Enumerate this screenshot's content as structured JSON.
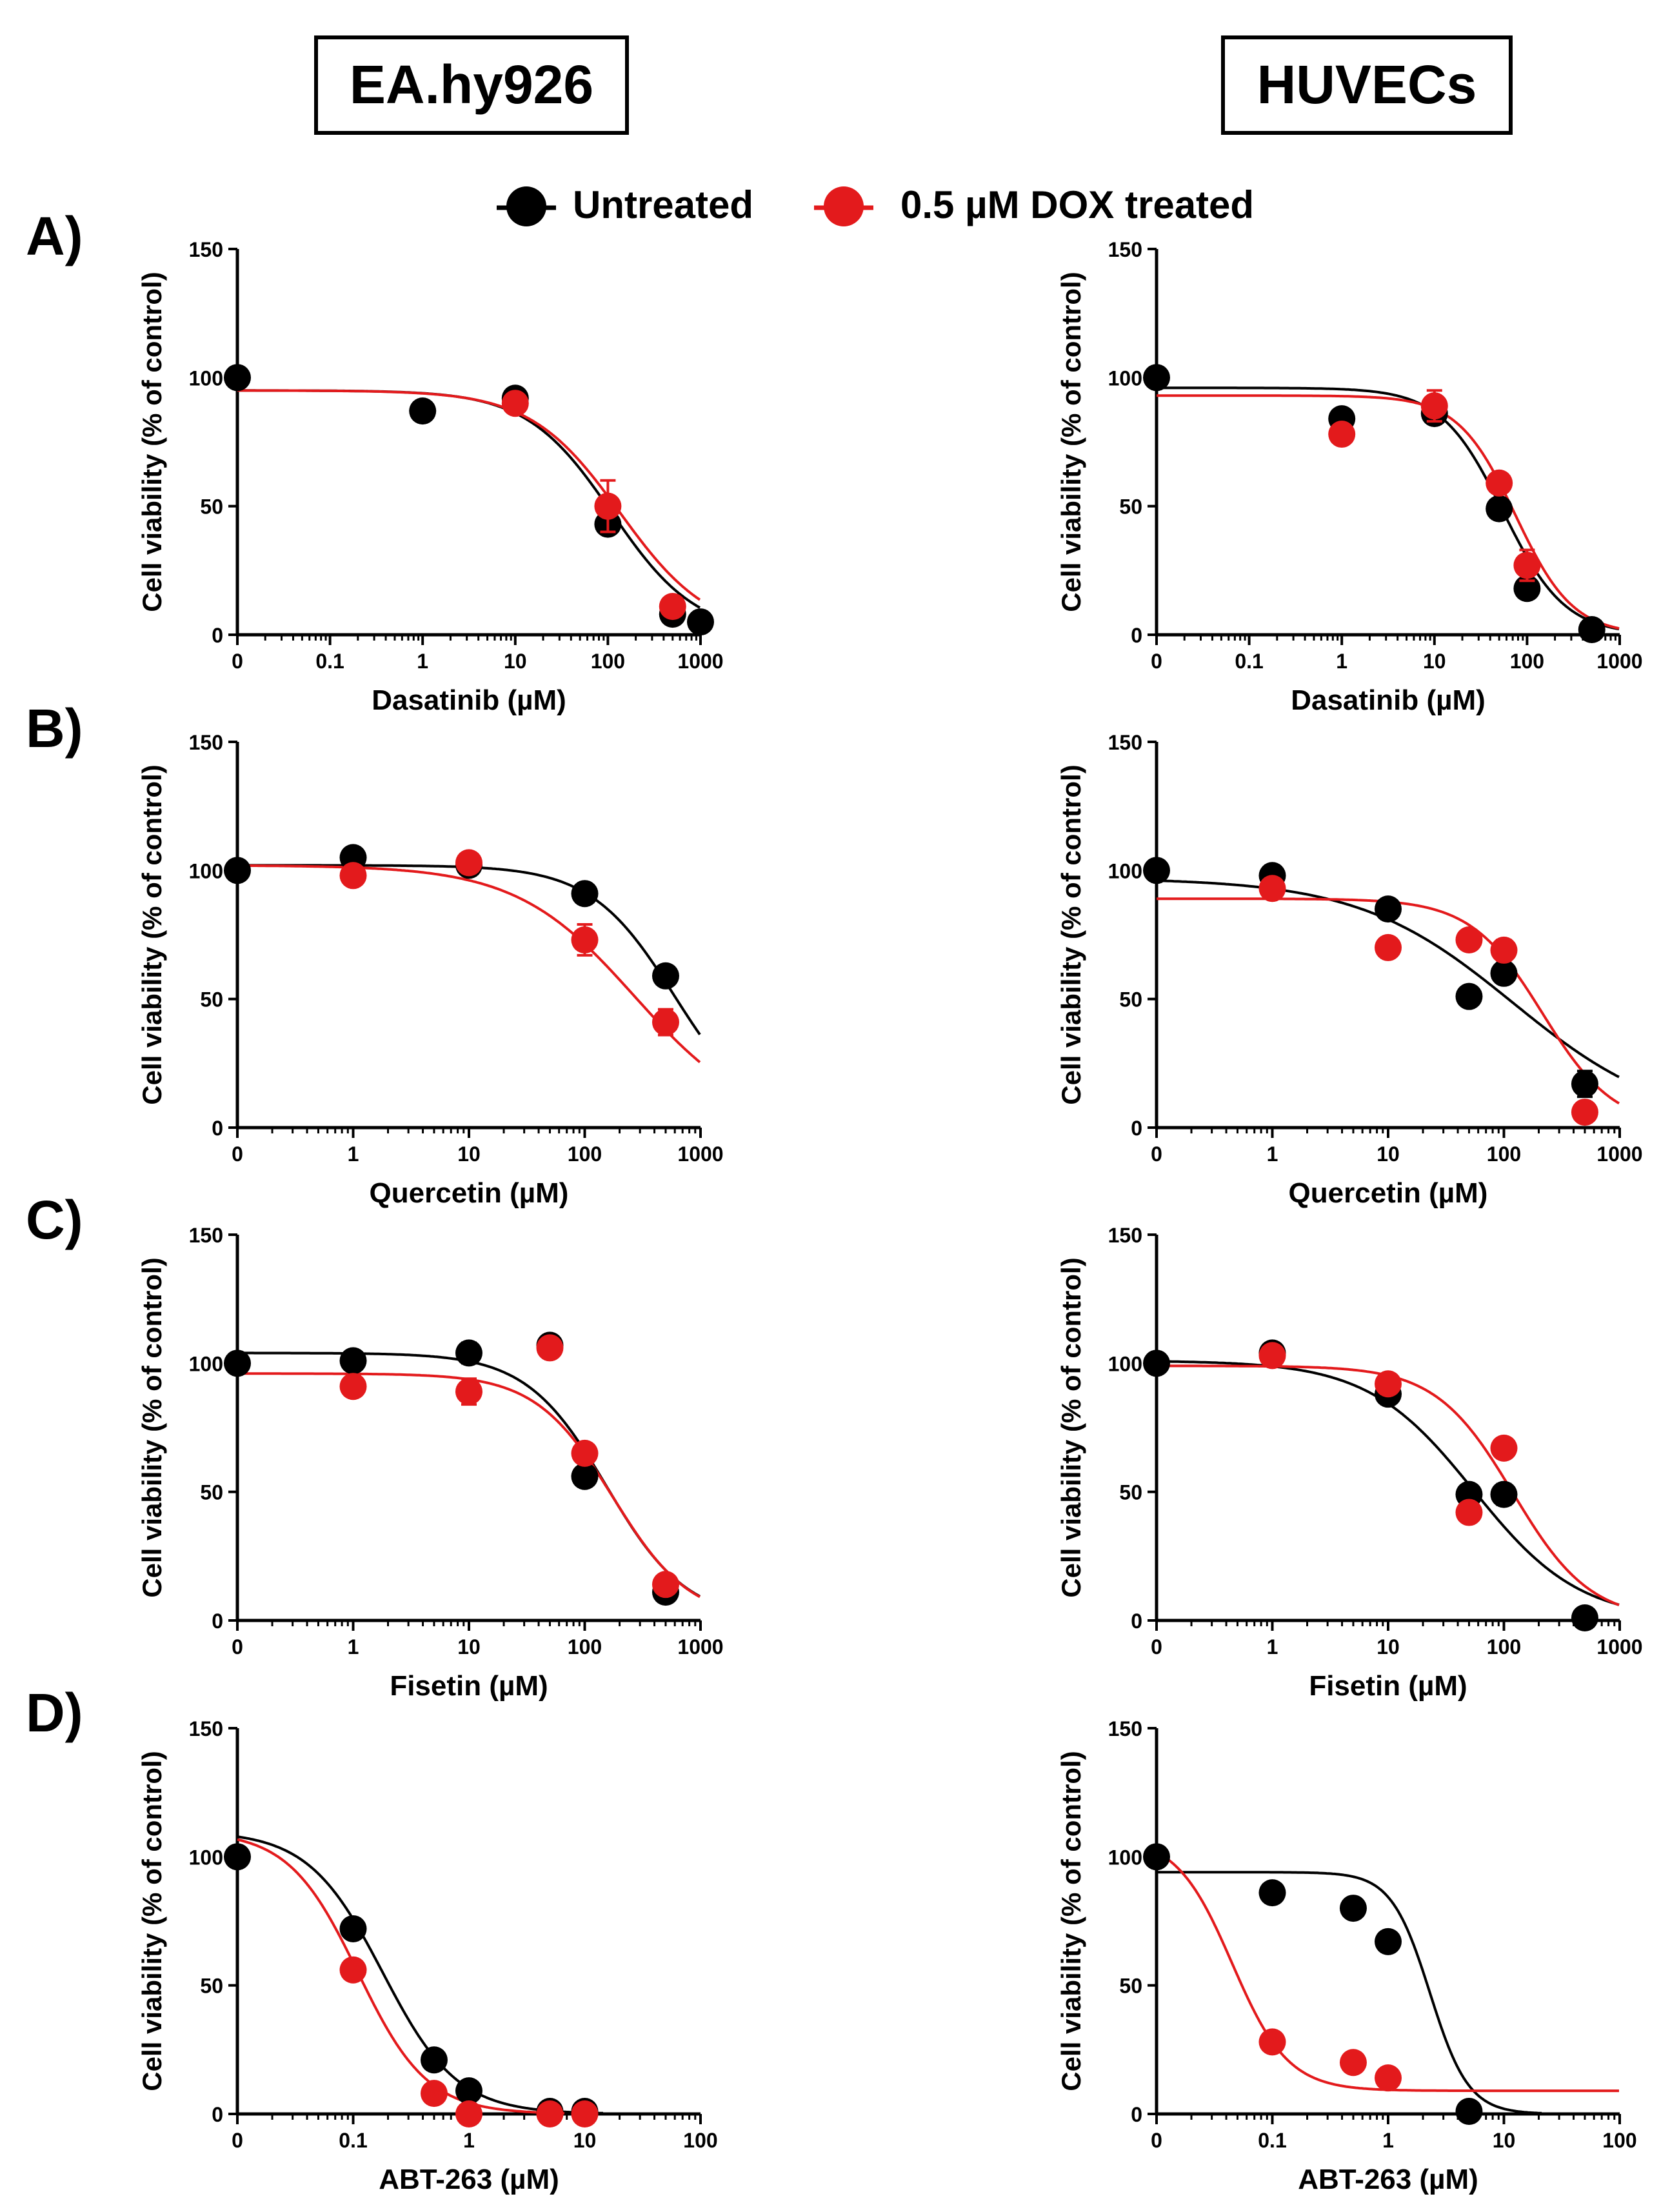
{
  "colors": {
    "untreated": "#000000",
    "treated": "#e31a1c",
    "axis": "#000000"
  },
  "headers": {
    "left": "EA.hy926",
    "right": "HUVECs"
  },
  "legend": {
    "untreated": "Untreated",
    "treated": "0.5 µM DOX treated"
  },
  "row_labels": [
    "A)",
    "B)",
    "C)",
    "D)"
  ],
  "chart_data": [
    {
      "type": "scatter",
      "row": 0,
      "col": 0,
      "title": "",
      "xlabel": "Dasatinib (µM)",
      "ylabel": "Cell viability (% of control)",
      "x_scale": "log",
      "x_ticks": [
        "0",
        "0.1",
        "1",
        "10",
        "100",
        "1000"
      ],
      "xlim_decades": 5,
      "y_ticks": [
        "0",
        "50",
        "100",
        "150"
      ],
      "ylim": [
        0,
        150
      ],
      "series": [
        {
          "name": "Untreated",
          "points": [
            [
              0,
              100,
              0
            ],
            [
              1,
              87,
              3
            ],
            [
              10,
              92,
              3
            ],
            [
              100,
              43,
              3
            ],
            [
              500,
              8,
              2
            ],
            [
              1000,
              5,
              1
            ]
          ],
          "fit": {
            "top": 95,
            "bottom": 0,
            "ec50": 110,
            "hill": 0.95
          }
        },
        {
          "name": "0.5 µM DOX treated",
          "points": [
            [
              10,
              90,
              2
            ],
            [
              100,
              50,
              10
            ],
            [
              500,
              11,
              2
            ]
          ],
          "fit": {
            "top": 95,
            "bottom": 0,
            "ec50": 135,
            "hill": 0.9
          }
        }
      ]
    },
    {
      "type": "scatter",
      "row": 0,
      "col": 1,
      "title": "",
      "xlabel": "Dasatinib (µM)",
      "ylabel": "Cell viability (% of control)",
      "x_scale": "log",
      "x_ticks": [
        "0",
        "0.1",
        "1",
        "10",
        "100",
        "1000"
      ],
      "xlim_decades": 5,
      "y_ticks": [
        "0",
        "50",
        "100",
        "150"
      ],
      "ylim": [
        0,
        150
      ],
      "series": [
        {
          "name": "Untreated",
          "points": [
            [
              0,
              100,
              0
            ],
            [
              1,
              84,
              2
            ],
            [
              10,
              86,
              3
            ],
            [
              50,
              49,
              2
            ],
            [
              100,
              18,
              3
            ],
            [
              500,
              2,
              1
            ]
          ],
          "fit": {
            "top": 96,
            "bottom": 0,
            "ec50": 55,
            "hill": 1.3
          }
        },
        {
          "name": "0.5 µM DOX treated",
          "points": [
            [
              1,
              78,
              3
            ],
            [
              10,
              89,
              6
            ],
            [
              50,
              59,
              2
            ],
            [
              100,
              27,
              6
            ]
          ],
          "fit": {
            "top": 93,
            "bottom": 0,
            "ec50": 75,
            "hill": 1.4
          }
        }
      ]
    },
    {
      "type": "scatter",
      "row": 1,
      "col": 0,
      "title": "",
      "xlabel": "Quercetin (µM)",
      "ylabel": "Cell viability (% of control)",
      "x_scale": "log",
      "x_ticks": [
        "0",
        "1",
        "10",
        "100",
        "1000"
      ],
      "xlim_decades": 4,
      "y_ticks": [
        "0",
        "50",
        "100",
        "150"
      ],
      "ylim": [
        0,
        150
      ],
      "series": [
        {
          "name": "Untreated",
          "points": [
            [
              0,
              100,
              0
            ],
            [
              1,
              105,
              2
            ],
            [
              10,
              102,
              2
            ],
            [
              100,
              91,
              2
            ],
            [
              500,
              59,
              2
            ]
          ],
          "fit": {
            "top": 102,
            "bottom": 0,
            "ec50": 600,
            "hill": 1.2
          }
        },
        {
          "name": "0.5 µM DOX treated",
          "points": [
            [
              1,
              98,
              2
            ],
            [
              10,
              103,
              2
            ],
            [
              100,
              73,
              6
            ],
            [
              500,
              41,
              5
            ]
          ],
          "fit": {
            "top": 102,
            "bottom": 0,
            "ec50": 270,
            "hill": 0.85
          }
        }
      ]
    },
    {
      "type": "scatter",
      "row": 1,
      "col": 1,
      "title": "",
      "xlabel": "Quercetin (µM)",
      "ylabel": "Cell viability (% of control)",
      "x_scale": "log",
      "x_ticks": [
        "0",
        "1",
        "10",
        "100",
        "1000"
      ],
      "xlim_decades": 4,
      "y_ticks": [
        "0",
        "50",
        "100",
        "150"
      ],
      "ylim": [
        0,
        150
      ],
      "series": [
        {
          "name": "Untreated",
          "points": [
            [
              0,
              100,
              0
            ],
            [
              1,
              98,
              2
            ],
            [
              10,
              85,
              2
            ],
            [
              50,
              51,
              2
            ],
            [
              100,
              60,
              3
            ],
            [
              500,
              17,
              5
            ]
          ],
          "fit": {
            "top": 97,
            "bottom": 0,
            "ec50": 120,
            "hill": 0.65
          }
        },
        {
          "name": "0.5 µM DOX treated",
          "points": [
            [
              1,
              93,
              2
            ],
            [
              10,
              70,
              2
            ],
            [
              50,
              73,
              2
            ],
            [
              100,
              69,
              4
            ],
            [
              500,
              6,
              2
            ]
          ],
          "fit": {
            "top": 89,
            "bottom": 0,
            "ec50": 215,
            "hill": 1.4
          }
        }
      ]
    },
    {
      "type": "scatter",
      "row": 2,
      "col": 0,
      "title": "",
      "xlabel": "Fisetin (µM)",
      "ylabel": "Cell viability (% of control)",
      "x_scale": "log",
      "x_ticks": [
        "0",
        "1",
        "10",
        "100",
        "1000"
      ],
      "xlim_decades": 4,
      "y_ticks": [
        "0",
        "50",
        "100",
        "150"
      ],
      "ylim": [
        0,
        150
      ],
      "series": [
        {
          "name": "Untreated",
          "points": [
            [
              0,
              100,
              0
            ],
            [
              1,
              101,
              2
            ],
            [
              10,
              104,
              4
            ],
            [
              50,
              107,
              2
            ],
            [
              100,
              56,
              2
            ],
            [
              500,
              11,
              2
            ]
          ],
          "fit": {
            "top": 104,
            "bottom": 0,
            "ec50": 155,
            "hill": 1.25
          }
        },
        {
          "name": "0.5 µM DOX treated",
          "points": [
            [
              1,
              91,
              3
            ],
            [
              10,
              89,
              5
            ],
            [
              50,
              106,
              2
            ],
            [
              100,
              65,
              3
            ],
            [
              500,
              14,
              2
            ]
          ],
          "fit": {
            "top": 96,
            "bottom": 0,
            "ec50": 175,
            "hill": 1.3
          }
        }
      ]
    },
    {
      "type": "scatter",
      "row": 2,
      "col": 1,
      "title": "",
      "xlabel": "Fisetin (µM)",
      "ylabel": "Cell viability (% of control)",
      "x_scale": "log",
      "x_ticks": [
        "0",
        "1",
        "10",
        "100",
        "1000"
      ],
      "xlim_decades": 4,
      "y_ticks": [
        "0",
        "50",
        "100",
        "150"
      ],
      "ylim": [
        0,
        150
      ],
      "series": [
        {
          "name": "Untreated",
          "points": [
            [
              0,
              100,
              0
            ],
            [
              1,
              104,
              2
            ],
            [
              10,
              88,
              2
            ],
            [
              50,
              49,
              2
            ],
            [
              100,
              49,
              4
            ],
            [
              500,
              1,
              1
            ]
          ],
          "fit": {
            "top": 101,
            "bottom": 0,
            "ec50": 55,
            "hill": 0.95
          }
        },
        {
          "name": "0.5 µM DOX treated",
          "points": [
            [
              1,
              103,
              2
            ],
            [
              10,
              92,
              2
            ],
            [
              50,
              42,
              2
            ],
            [
              100,
              67,
              2
            ]
          ],
          "fit": {
            "top": 99,
            "bottom": 0,
            "ec50": 120,
            "hill": 1.3
          }
        }
      ]
    },
    {
      "type": "scatter",
      "row": 3,
      "col": 0,
      "title": "",
      "xlabel": "ABT-263  (µM)",
      "ylabel": "Cell viability (% of control)",
      "x_scale": "log",
      "x_ticks": [
        "0",
        "0.1",
        "1",
        "10",
        "100"
      ],
      "xlim_decades": 4,
      "y_ticks": [
        "0",
        "50",
        "100",
        "150"
      ],
      "ylim": [
        0,
        150
      ],
      "series": [
        {
          "name": "Untreated",
          "points": [
            [
              0,
              100,
              0
            ],
            [
              0.1,
              72,
              2
            ],
            [
              0.5,
              21,
              2
            ],
            [
              1,
              9,
              1
            ],
            [
              5,
              1,
              1
            ],
            [
              10,
              1,
              1
            ]
          ],
          "fit": {
            "top": 110,
            "bottom": 0,
            "ec50": 0.18,
            "hill": 1.35
          }
        },
        {
          "name": "0.5 µM DOX treated",
          "points": [
            [
              0.1,
              56,
              2
            ],
            [
              0.5,
              8,
              1
            ],
            [
              1,
              0,
              0
            ],
            [
              5,
              0,
              0
            ],
            [
              10,
              0,
              0
            ]
          ],
          "fit": {
            "top": 110,
            "bottom": 0,
            "ec50": 0.11,
            "hill": 1.45
          }
        }
      ]
    },
    {
      "type": "scatter",
      "row": 3,
      "col": 1,
      "title": "",
      "xlabel": "ABT-263 (µM)",
      "ylabel": "Cell viability (% of control)",
      "x_scale": "log",
      "x_ticks": [
        "0",
        "0.1",
        "1",
        "10",
        "100"
      ],
      "xlim_decades": 4,
      "y_ticks": [
        "0",
        "50",
        "100",
        "150"
      ],
      "ylim": [
        0,
        150
      ],
      "series": [
        {
          "name": "Untreated",
          "points": [
            [
              0,
              100,
              3
            ],
            [
              0.1,
              86,
              2
            ],
            [
              0.5,
              80,
              2
            ],
            [
              1,
              67,
              2
            ],
            [
              5,
              1,
              1
            ]
          ],
          "fit": {
            "top": 94,
            "bottom": 0,
            "ec50": 2.3,
            "hill": 2.6
          }
        },
        {
          "name": "0.5 µM DOX treated",
          "points": [
            [
              0.1,
              28,
              2
            ],
            [
              0.5,
              20,
              2
            ],
            [
              1,
              14,
              2
            ]
          ],
          "fit": {
            "top": 108,
            "bottom": 9,
            "ec50": 0.045,
            "hill": 1.8
          }
        }
      ]
    }
  ]
}
